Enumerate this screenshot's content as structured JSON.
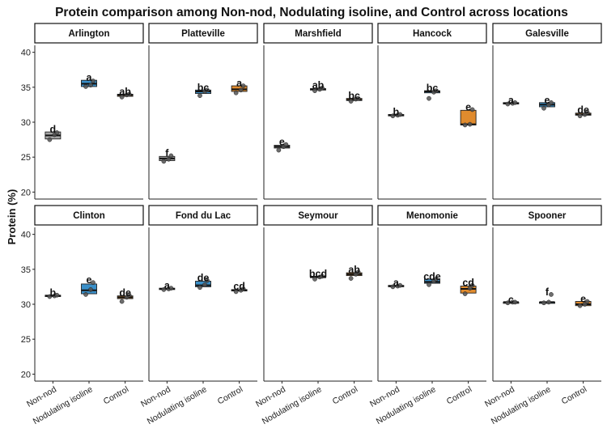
{
  "chart_data": {
    "type": "boxplot",
    "title": "Protein comparison among Non-nod, Nodulating isoline, and Control across locations",
    "ylabel": "Protein (%)",
    "xlabel": "",
    "ylim": [
      19,
      41
    ],
    "yticks": [
      20,
      25,
      30,
      35,
      40
    ],
    "grid": false,
    "legend": "none",
    "categories": [
      "Non-nod",
      "Nodulating isoline",
      "Control"
    ],
    "colors": {
      "Non-nod": "#a6a6a6",
      "Nodulating isoline": "#3a8fc8",
      "Control": "#e08b2e"
    },
    "panels": [
      {
        "location": "Arlington",
        "groups": [
          {
            "q1": 27.6,
            "median": 28.1,
            "q3": 28.6,
            "letter": "d",
            "points": [
              27.5,
              28.2,
              28.5
            ]
          },
          {
            "q1": 35.1,
            "median": 35.5,
            "q3": 36.0,
            "letter": "a",
            "points": [
              35.1,
              35.3,
              35.9
            ]
          },
          {
            "q1": 33.7,
            "median": 33.9,
            "q3": 34.0,
            "letter": "ab",
            "points": [
              33.6,
              33.9,
              34.0
            ]
          }
        ]
      },
      {
        "location": "Platteville",
        "groups": [
          {
            "q1": 24.5,
            "median": 24.8,
            "q3": 25.1,
            "letter": "f",
            "points": [
              24.4,
              24.7,
              25.2
            ]
          },
          {
            "q1": 34.1,
            "median": 34.4,
            "q3": 34.6,
            "letter": "bc",
            "points": [
              33.8,
              34.4,
              34.6
            ]
          },
          {
            "q1": 34.4,
            "median": 34.7,
            "q3": 35.2,
            "letter": "a",
            "points": [
              34.2,
              34.6,
              35.2
            ]
          }
        ]
      },
      {
        "location": "Marshfield",
        "groups": [
          {
            "q1": 26.3,
            "median": 26.5,
            "q3": 26.7,
            "letter": "e",
            "points": [
              26.0,
              26.5,
              26.8
            ]
          },
          {
            "q1": 34.6,
            "median": 34.7,
            "q3": 34.8,
            "letter": "ab",
            "points": [
              34.5,
              34.7,
              34.9
            ]
          },
          {
            "q1": 33.1,
            "median": 33.2,
            "q3": 33.4,
            "letter": "bc",
            "points": [
              33.0,
              33.3,
              33.4
            ]
          }
        ]
      },
      {
        "location": "Hancock",
        "groups": [
          {
            "q1": 30.9,
            "median": 31.0,
            "q3": 31.1,
            "letter": "b",
            "points": [
              30.9,
              31.0,
              31.1
            ]
          },
          {
            "q1": 34.2,
            "median": 34.4,
            "q3": 34.5,
            "letter": "bc",
            "points": [
              33.4,
              34.3,
              34.5
            ]
          },
          {
            "q1": 29.6,
            "median": 29.7,
            "q3": 31.7,
            "letter": "e",
            "points": [
              29.6,
              29.7,
              31.8
            ]
          }
        ]
      },
      {
        "location": "Galesville",
        "groups": [
          {
            "q1": 32.6,
            "median": 32.7,
            "q3": 32.8,
            "letter": "a",
            "points": [
              32.6,
              32.7,
              32.8
            ]
          },
          {
            "q1": 32.2,
            "median": 32.5,
            "q3": 32.8,
            "letter": "e",
            "points": [
              32.0,
              32.5,
              32.8
            ]
          },
          {
            "q1": 31.0,
            "median": 31.1,
            "q3": 31.3,
            "letter": "de",
            "points": [
              30.9,
              31.1,
              31.4
            ]
          }
        ]
      },
      {
        "location": "Clinton",
        "groups": [
          {
            "q1": 31.1,
            "median": 31.2,
            "q3": 31.3,
            "letter": "b",
            "points": [
              31.1,
              31.2,
              31.3
            ]
          },
          {
            "q1": 31.5,
            "median": 32.0,
            "q3": 32.9,
            "letter": "e",
            "points": [
              31.4,
              32.1,
              33.1
            ]
          },
          {
            "q1": 30.8,
            "median": 31.0,
            "q3": 31.2,
            "letter": "de",
            "points": [
              30.4,
              31.0,
              31.3
            ]
          }
        ]
      },
      {
        "location": "Fond du Lac",
        "groups": [
          {
            "q1": 32.1,
            "median": 32.2,
            "q3": 32.3,
            "letter": "a",
            "points": [
              32.1,
              32.2,
              32.3
            ]
          },
          {
            "q1": 32.5,
            "median": 32.7,
            "q3": 33.3,
            "letter": "de",
            "points": [
              32.4,
              32.8,
              33.4
            ]
          },
          {
            "q1": 31.9,
            "median": 32.0,
            "q3": 32.1,
            "letter": "cd",
            "points": [
              31.8,
              32.0,
              32.2
            ]
          }
        ]
      },
      {
        "location": "Seymour",
        "groups": [
          {
            "q1": null,
            "median": null,
            "q3": null,
            "letter": "",
            "points": []
          },
          {
            "q1": 33.8,
            "median": 33.9,
            "q3": 34.0,
            "letter": "bcd",
            "points": [
              33.6,
              33.9,
              34.0
            ]
          },
          {
            "q1": 34.1,
            "median": 34.3,
            "q3": 34.5,
            "letter": "ab",
            "points": [
              33.7,
              34.3,
              34.6
            ]
          }
        ]
      },
      {
        "location": "Menomonie",
        "groups": [
          {
            "q1": 32.5,
            "median": 32.6,
            "q3": 32.7,
            "letter": "a",
            "points": [
              32.5,
              32.6,
              32.7
            ]
          },
          {
            "q1": 33.0,
            "median": 33.2,
            "q3": 33.6,
            "letter": "cde",
            "points": [
              32.8,
              33.3,
              33.6
            ]
          },
          {
            "q1": 31.6,
            "median": 32.2,
            "q3": 32.6,
            "letter": "cd",
            "points": [
              31.5,
              32.3,
              32.7
            ]
          }
        ]
      },
      {
        "location": "Spooner",
        "groups": [
          {
            "q1": 30.2,
            "median": 30.3,
            "q3": 30.3,
            "letter": "c",
            "points": [
              30.2,
              30.3,
              30.3
            ]
          },
          {
            "q1": 30.2,
            "median": 30.3,
            "q3": 30.3,
            "letter": "f",
            "points": [
              30.2,
              30.3,
              31.4
            ]
          },
          {
            "q1": 29.8,
            "median": 30.0,
            "q3": 30.4,
            "letter": "e",
            "points": [
              29.8,
              30.0,
              30.4
            ]
          }
        ]
      }
    ]
  }
}
